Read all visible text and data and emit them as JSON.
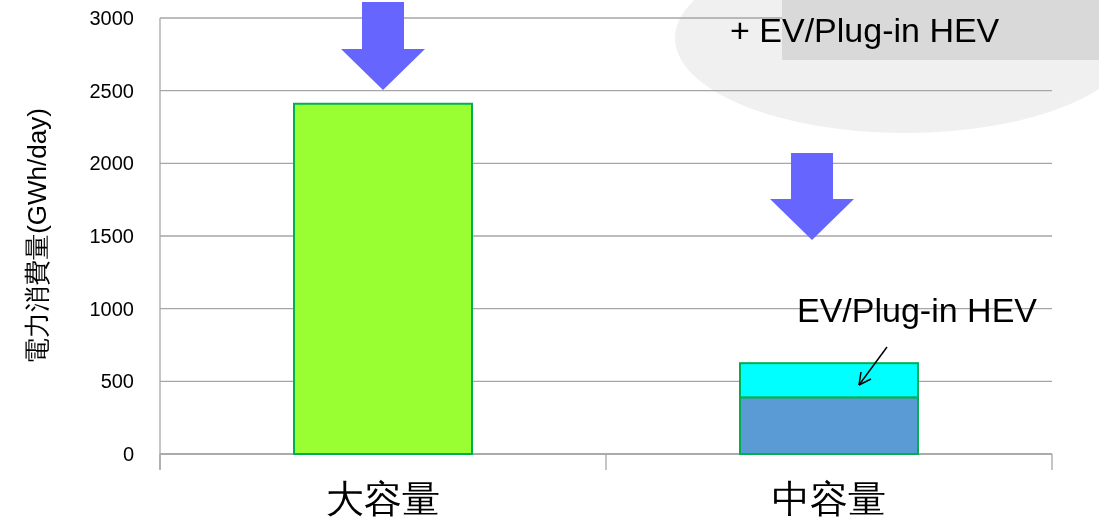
{
  "chart_data": {
    "type": "bar",
    "ylabel": "電力消費量(GWh/day)",
    "categories": [
      "大容量",
      "中容量"
    ],
    "stacked": true,
    "series": [
      {
        "colors": [
          "#99ff33",
          "#5b9bd5"
        ],
        "values": [
          2410,
          390
        ]
      },
      {
        "color": "#00ffff",
        "values": [
          null,
          235
        ]
      }
    ],
    "ylim": [
      0,
      3000
    ],
    "yticks": [
      0,
      500,
      1000,
      1500,
      2000,
      2500,
      3000
    ],
    "grid": "y",
    "annotations": [
      "+ EV/Plug-in HEV",
      "EV/Plug-in HEV"
    ]
  }
}
